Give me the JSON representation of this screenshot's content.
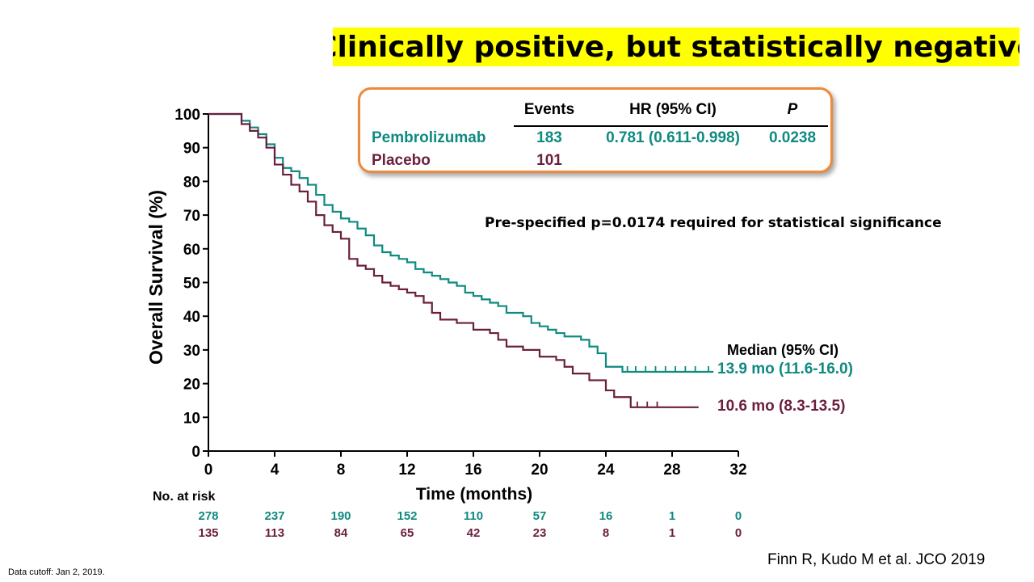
{
  "title": "Clinically positive, but statistically negative",
  "stats_table": {
    "headers": {
      "events": "Events",
      "hr": "HR (95% CI)",
      "p": "P"
    },
    "rows": [
      {
        "name": "Pembrolizumab",
        "events": "183",
        "hr": "0.781 (0.611-0.998)",
        "p": "0.0238",
        "color": "#0f8a80"
      },
      {
        "name": "Placebo",
        "events": "101",
        "hr": "",
        "p": "",
        "color": "#6b1f3e"
      }
    ]
  },
  "significance_note": "Pre-specified p=0.0174 required for statistical significance",
  "median_label": "Median (95% CI)",
  "median_values": {
    "pembrolizumab": "13.9 mo (11.6-16.0)",
    "placebo": "10.6 mo (8.3-13.5)"
  },
  "risk_table": {
    "label": "No. at risk",
    "pembrolizumab": [
      "278",
      "237",
      "190",
      "152",
      "110",
      "57",
      "16",
      "1",
      "0"
    ],
    "placebo": [
      "135",
      "113",
      "84",
      "65",
      "42",
      "23",
      "8",
      "1",
      "0"
    ]
  },
  "footnote": "Data cutoff: Jan 2, 2019.",
  "citation": "Finn R, Kudo M et al.  JCO 2019",
  "chart_data": {
    "type": "line",
    "xlabel": "Time (months)",
    "ylabel": "Overall Survival (%)",
    "xlim": [
      0,
      32
    ],
    "ylim": [
      0,
      100
    ],
    "xticks": [
      0,
      4,
      8,
      12,
      16,
      20,
      24,
      28,
      32
    ],
    "yticks": [
      0,
      10,
      20,
      30,
      40,
      50,
      60,
      70,
      80,
      90,
      100
    ],
    "grid": false,
    "series": [
      {
        "name": "Pembrolizumab",
        "color": "#0f8a80",
        "points": [
          [
            0,
            100
          ],
          [
            1.5,
            100
          ],
          [
            2,
            98
          ],
          [
            2.5,
            96
          ],
          [
            3,
            94
          ],
          [
            3.5,
            91
          ],
          [
            4,
            87
          ],
          [
            4.5,
            84
          ],
          [
            5,
            83
          ],
          [
            5.5,
            81
          ],
          [
            6,
            79
          ],
          [
            6.5,
            76
          ],
          [
            7,
            73
          ],
          [
            7.5,
            71
          ],
          [
            8,
            69
          ],
          [
            8.5,
            68
          ],
          [
            9,
            66
          ],
          [
            9.5,
            64
          ],
          [
            10,
            61
          ],
          [
            10.5,
            59
          ],
          [
            11,
            58
          ],
          [
            11.5,
            57
          ],
          [
            12,
            56
          ],
          [
            12.5,
            54
          ],
          [
            13,
            53
          ],
          [
            13.5,
            52
          ],
          [
            14,
            51
          ],
          [
            14.5,
            50
          ],
          [
            15,
            49
          ],
          [
            15.5,
            47
          ],
          [
            16,
            46
          ],
          [
            16.5,
            45
          ],
          [
            17,
            44
          ],
          [
            17.5,
            43
          ],
          [
            18,
            41
          ],
          [
            18.5,
            41
          ],
          [
            19,
            40
          ],
          [
            19.5,
            38
          ],
          [
            20,
            37
          ],
          [
            20.5,
            36
          ],
          [
            21,
            35
          ],
          [
            21.5,
            34
          ],
          [
            22,
            34
          ],
          [
            22.5,
            33
          ],
          [
            23,
            31
          ],
          [
            23.5,
            29
          ],
          [
            24,
            25
          ],
          [
            24.5,
            25
          ],
          [
            25,
            23.5
          ],
          [
            30.5,
            23.5
          ]
        ],
        "censors": [
          25.3,
          25.8,
          26.4,
          27,
          27.6,
          28.2,
          28.8,
          29.4,
          30.2
        ]
      },
      {
        "name": "Placebo",
        "color": "#6b1f3e",
        "points": [
          [
            0,
            100
          ],
          [
            1.5,
            100
          ],
          [
            2,
            97
          ],
          [
            2.5,
            95
          ],
          [
            3,
            93
          ],
          [
            3.5,
            90
          ],
          [
            4,
            85
          ],
          [
            4.5,
            82
          ],
          [
            5,
            79
          ],
          [
            5.5,
            77
          ],
          [
            6,
            74
          ],
          [
            6.5,
            70
          ],
          [
            7,
            67
          ],
          [
            7.5,
            65
          ],
          [
            8,
            63
          ],
          [
            8.5,
            57
          ],
          [
            9,
            55
          ],
          [
            9.5,
            54
          ],
          [
            10,
            52
          ],
          [
            10.5,
            50
          ],
          [
            11,
            49
          ],
          [
            11.5,
            48
          ],
          [
            12,
            47
          ],
          [
            12.5,
            46
          ],
          [
            13,
            44
          ],
          [
            13.5,
            41
          ],
          [
            14,
            39
          ],
          [
            15,
            38
          ],
          [
            16,
            36
          ],
          [
            17,
            35
          ],
          [
            17.5,
            33
          ],
          [
            18,
            31
          ],
          [
            19,
            30
          ],
          [
            20,
            28
          ],
          [
            21,
            27
          ],
          [
            21.5,
            25
          ],
          [
            22,
            23
          ],
          [
            23,
            21
          ],
          [
            24,
            18
          ],
          [
            24.5,
            16
          ],
          [
            25.5,
            13
          ],
          [
            29.6,
            13
          ]
        ],
        "censors": [
          25.9,
          26.5,
          27.1
        ]
      }
    ]
  }
}
